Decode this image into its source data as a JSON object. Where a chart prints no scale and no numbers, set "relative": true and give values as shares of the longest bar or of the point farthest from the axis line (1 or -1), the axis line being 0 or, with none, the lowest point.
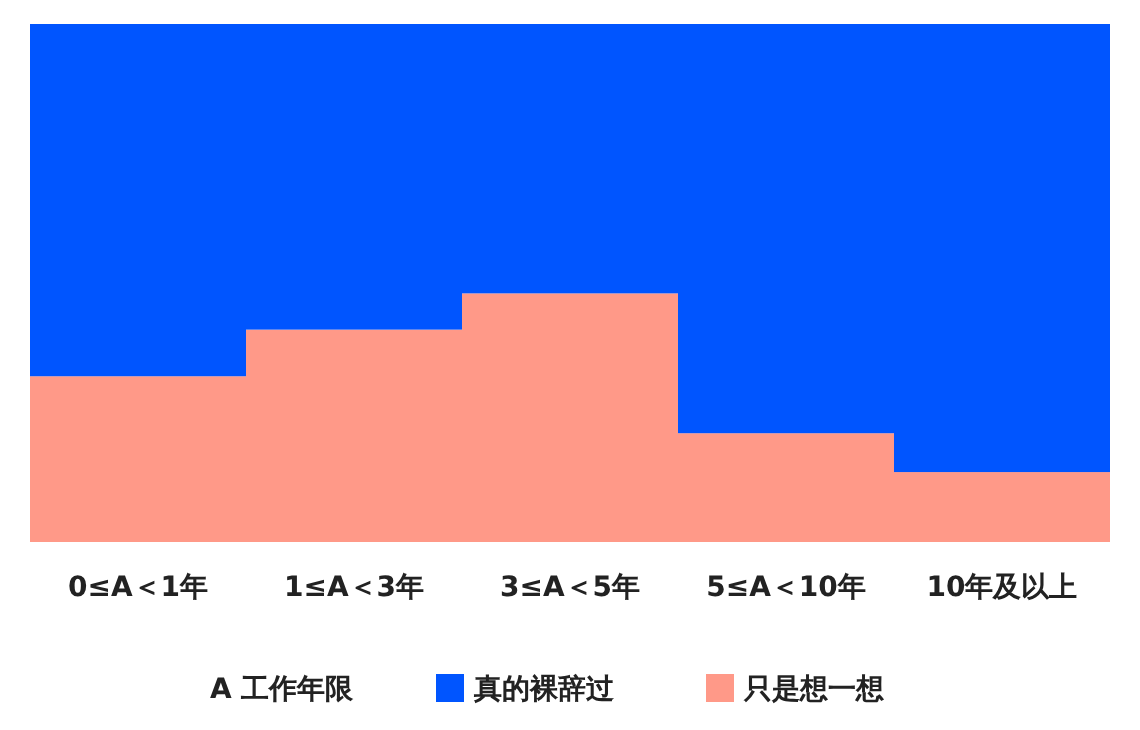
{
  "chart_data": {
    "type": "bar",
    "stacked": true,
    "relative": true,
    "legend": "bottom",
    "legend_title": "A 工作年限",
    "categories": [
      "0≤A＜1年",
      "1≤A＜3年",
      "3≤A＜5年",
      "5≤A＜10年",
      "10年及以上"
    ],
    "series": [
      {
        "name": "只是想一想",
        "color": "#ff9988",
        "values": [
          0.32,
          0.41,
          0.48,
          0.21,
          0.135
        ]
      },
      {
        "name": "真的裸辞过",
        "color": "#0055ff",
        "values": [
          0.68,
          0.59,
          0.52,
          0.79,
          0.865
        ]
      }
    ]
  }
}
